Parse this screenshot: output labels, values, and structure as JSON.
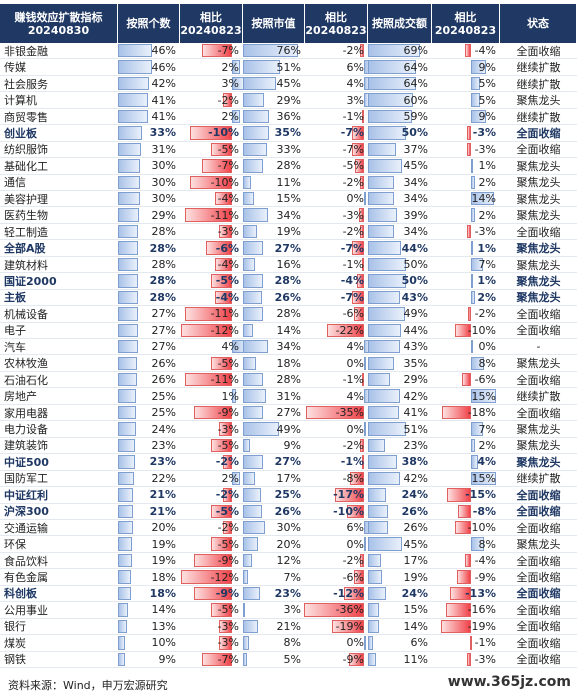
{
  "header": {
    "columns": [
      "赚钱效应扩散指标\n20240830",
      "按照个数",
      "相比\n20240823",
      "按照市值",
      "相比\n20240823",
      "按照成交额",
      "相比\n20240823",
      "状态"
    ]
  },
  "table": {
    "rows": [
      {
        "cells": [
          "非银金融",
          "46%",
          "-7%",
          "76%",
          "-2%",
          "69%",
          "-4%",
          "全面收缩"
        ]
      },
      {
        "cells": [
          "传媒",
          "46%",
          "2%",
          "51%",
          "6%",
          "64%",
          "9%",
          "继续扩散"
        ]
      },
      {
        "cells": [
          "社会服务",
          "42%",
          "3%",
          "45%",
          "4%",
          "64%",
          "5%",
          "继续扩散"
        ]
      },
      {
        "cells": [
          "计算机",
          "41%",
          "-2%",
          "29%",
          "3%",
          "60%",
          "5%",
          "聚焦龙头"
        ]
      },
      {
        "cells": [
          "商贸零售",
          "41%",
          "2%",
          "36%",
          "-1%",
          "59%",
          "9%",
          "继续扩散"
        ]
      },
      {
        "cells": [
          "创业板",
          "33%",
          "-10%",
          "35%",
          "-7%",
          "50%",
          "-3%",
          "全面收缩"
        ],
        "bold": true
      },
      {
        "cells": [
          "纺织服饰",
          "31%",
          "-5%",
          "33%",
          "-7%",
          "37%",
          "-3%",
          "全面收缩"
        ]
      },
      {
        "cells": [
          "基础化工",
          "30%",
          "-7%",
          "28%",
          "-5%",
          "45%",
          "1%",
          "聚焦龙头"
        ]
      },
      {
        "cells": [
          "通信",
          "30%",
          "-10%",
          "11%",
          "-2%",
          "34%",
          "2%",
          "聚焦龙头"
        ]
      },
      {
        "cells": [
          "美容护理",
          "30%",
          "-4%",
          "15%",
          "0%",
          "34%",
          "14%",
          "聚焦龙头"
        ]
      },
      {
        "cells": [
          "医药生物",
          "29%",
          "-11%",
          "34%",
          "-3%",
          "39%",
          "2%",
          "聚焦龙头"
        ]
      },
      {
        "cells": [
          "轻工制造",
          "28%",
          "-3%",
          "19%",
          "-2%",
          "34%",
          "-3%",
          "全面收缩"
        ]
      },
      {
        "cells": [
          "全部A股",
          "28%",
          "-6%",
          "27%",
          "-7%",
          "44%",
          "1%",
          "聚焦龙头"
        ],
        "bold": true
      },
      {
        "cells": [
          "建筑材料",
          "28%",
          "-4%",
          "16%",
          "-1%",
          "50%",
          "7%",
          "聚焦龙头"
        ]
      },
      {
        "cells": [
          "国证2000",
          "28%",
          "-5%",
          "28%",
          "-4%",
          "50%",
          "1%",
          "聚焦龙头"
        ],
        "bold": true
      },
      {
        "cells": [
          "主板",
          "28%",
          "-4%",
          "26%",
          "-7%",
          "43%",
          "2%",
          "聚焦龙头"
        ],
        "bold": true
      },
      {
        "cells": [
          "机械设备",
          "27%",
          "-11%",
          "28%",
          "-6%",
          "49%",
          "-2%",
          "全面收缩"
        ]
      },
      {
        "cells": [
          "电子",
          "27%",
          "-12%",
          "14%",
          "-22%",
          "44%",
          "-10%",
          "全面收缩"
        ]
      },
      {
        "cells": [
          "汽车",
          "27%",
          "4%",
          "34%",
          "4%",
          "43%",
          "0%",
          "-"
        ]
      },
      {
        "cells": [
          "农林牧渔",
          "26%",
          "-5%",
          "18%",
          "0%",
          "35%",
          "8%",
          "聚焦龙头"
        ]
      },
      {
        "cells": [
          "石油石化",
          "26%",
          "-11%",
          "28%",
          "-1%",
          "29%",
          "-6%",
          "全面收缩"
        ]
      },
      {
        "cells": [
          "房地产",
          "25%",
          "1%",
          "31%",
          "4%",
          "42%",
          "15%",
          "继续扩散"
        ]
      },
      {
        "cells": [
          "家用电器",
          "25%",
          "-9%",
          "27%",
          "-35%",
          "41%",
          "-18%",
          "全面收缩"
        ]
      },
      {
        "cells": [
          "电力设备",
          "24%",
          "-3%",
          "49%",
          "0%",
          "51%",
          "7%",
          "聚焦龙头"
        ]
      },
      {
        "cells": [
          "建筑装饰",
          "23%",
          "-5%",
          "9%",
          "-2%",
          "23%",
          "2%",
          "聚焦龙头"
        ]
      },
      {
        "cells": [
          "中证500",
          "23%",
          "-2%",
          "27%",
          "-1%",
          "38%",
          "4%",
          "聚焦龙头"
        ],
        "bold": true
      },
      {
        "cells": [
          "国防军工",
          "22%",
          "2%",
          "17%",
          "-8%",
          "42%",
          "15%",
          "继续扩散"
        ]
      },
      {
        "cells": [
          "中证红利",
          "21%",
          "-2%",
          "25%",
          "-17%",
          "24%",
          "-15%",
          "全面收缩"
        ],
        "bold": true
      },
      {
        "cells": [
          "沪深300",
          "21%",
          "-5%",
          "26%",
          "-10%",
          "26%",
          "-8%",
          "全面收缩"
        ],
        "bold": true
      },
      {
        "cells": [
          "交通运输",
          "20%",
          "-2%",
          "30%",
          "6%",
          "26%",
          "-10%",
          "全面收缩"
        ]
      },
      {
        "cells": [
          "环保",
          "19%",
          "-5%",
          "20%",
          "0%",
          "45%",
          "8%",
          "聚焦龙头"
        ]
      },
      {
        "cells": [
          "食品饮料",
          "19%",
          "-9%",
          "12%",
          "-2%",
          "17%",
          "-4%",
          "全面收缩"
        ]
      },
      {
        "cells": [
          "有色金属",
          "18%",
          "-12%",
          "7%",
          "-6%",
          "19%",
          "-9%",
          "全面收缩"
        ]
      },
      {
        "cells": [
          "科创板",
          "18%",
          "-9%",
          "23%",
          "-12%",
          "24%",
          "-13%",
          "全面收缩"
        ],
        "bold": true
      },
      {
        "cells": [
          "公用事业",
          "14%",
          "-5%",
          "3%",
          "-36%",
          "15%",
          "-16%",
          "全面收缩"
        ]
      },
      {
        "cells": [
          "银行",
          "13%",
          "-3%",
          "21%",
          "-19%",
          "14%",
          "-19%",
          "全面收缩"
        ]
      },
      {
        "cells": [
          "煤炭",
          "10%",
          "-3%",
          "8%",
          "0%",
          "6%",
          "-1%",
          "全面收缩"
        ]
      },
      {
        "cells": [
          "钢铁",
          "9%",
          "-7%",
          "5%",
          "-9%",
          "11%",
          "-3%",
          "全面收缩"
        ]
      }
    ]
  },
  "footer": {
    "source": "资料来源：Wind，申万宏源研究",
    "watermark": "www.365jz.com"
  }
}
